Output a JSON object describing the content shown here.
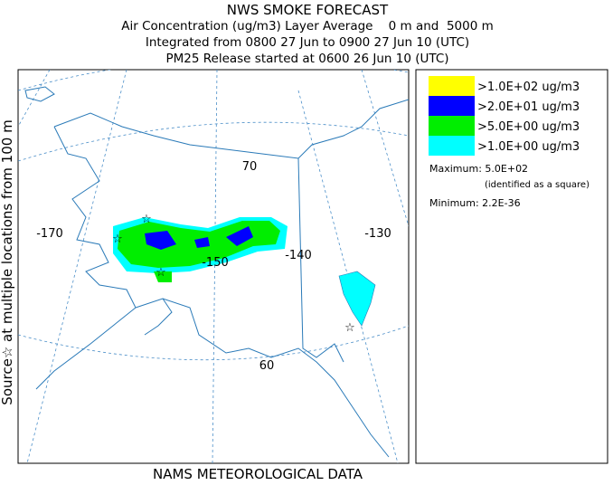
{
  "header": {
    "title": "NWS SMOKE FORECAST",
    "lines": [
      "Air Concentration (ug/m3) Layer Average    0 m and  5000 m",
      "Integrated from 0800 27 Jun to 0900 27 Jun 10 (UTC)",
      "PM25 Release started at 0600 26 Jun 10 (UTC)"
    ]
  },
  "side_label": "Source☆ at multiple locations from 100 m",
  "footer": "NAMS METEOROLOGICAL DATA",
  "legend": {
    "entries": [
      {
        "label": ">1.0E+02 ug/m3",
        "color": "#ffff00"
      },
      {
        "label": ">2.0E+01 ug/m3",
        "color": "#0000ff"
      },
      {
        "label": ">5.0E+00 ug/m3",
        "color": "#00ee00"
      },
      {
        "label": ">1.0E+00 ug/m3",
        "color": "#00ffff"
      }
    ],
    "maximum": "Maximum: 5.0E+02",
    "maximum_note": "(identified as a square)",
    "minimum": "Minimum: 2.2E-36"
  },
  "map": {
    "labels": [
      "-170",
      "-150",
      "-140",
      "-130",
      "70",
      "60"
    ]
  }
}
